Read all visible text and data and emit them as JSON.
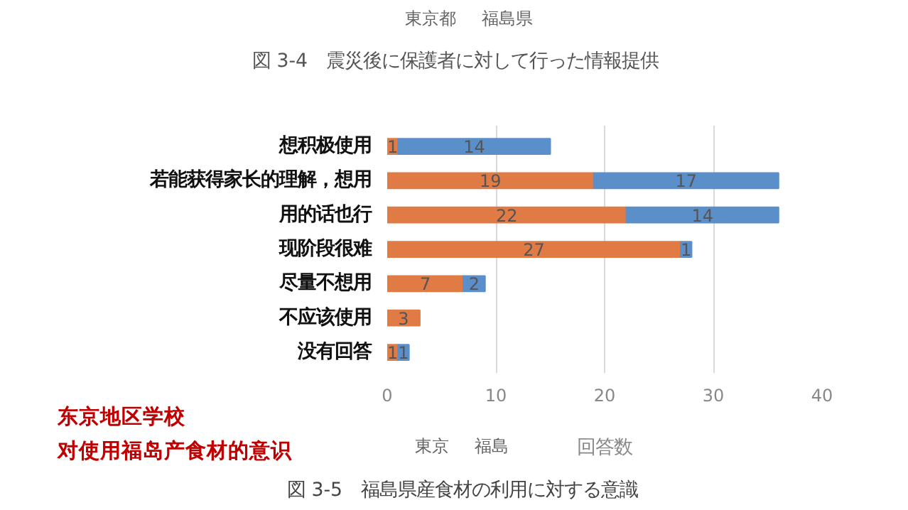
{
  "chart_data": {
    "type": "bar",
    "orientation": "horizontal",
    "stacked": true,
    "title": "図 3-5　福島県産食材の利用に対する意識",
    "xlabel": "回答数",
    "categories": [
      "想积极使用",
      "若能获得家长的理解，想用",
      "用的话也行",
      "现阶段很难",
      "尽量不想用",
      "不应该使用",
      "没有回答"
    ],
    "series": [
      {
        "name": "東京",
        "color": "#e07b45",
        "values": [
          1,
          19,
          22,
          27,
          7,
          3,
          1
        ]
      },
      {
        "name": "福島",
        "color": "#5b8fc9",
        "values": [
          14,
          17,
          14,
          1,
          2,
          null,
          1
        ]
      }
    ],
    "xlim": [
      0,
      40
    ],
    "xticks": [
      0,
      10,
      20,
      30,
      40
    ],
    "grid": "x",
    "legend": "bottom",
    "data_labels": true,
    "annotations": [
      "東京都",
      "福島県",
      "図 3-4　震災後に保護者に対して行った情報提供",
      "东京地区学校",
      "对使用福岛产食材的意识"
    ]
  }
}
